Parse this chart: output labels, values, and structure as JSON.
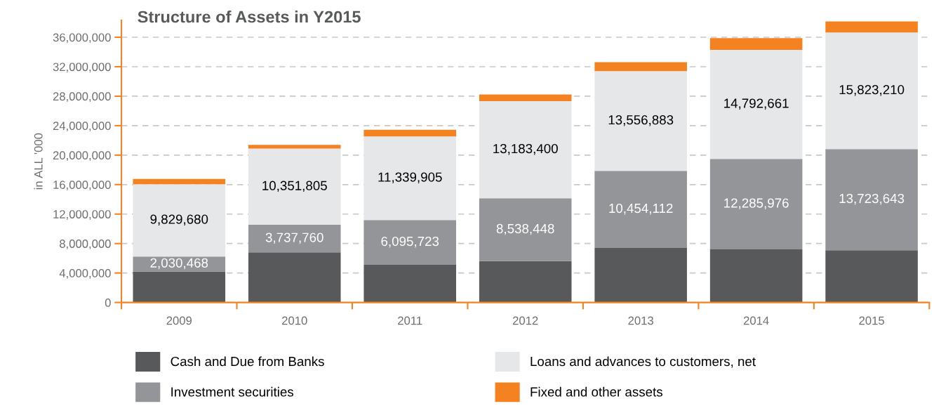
{
  "chart_data": {
    "type": "bar",
    "stacked": true,
    "title": "Structure of Assets in Y2015",
    "ylabel": "in ALL '000",
    "categories": [
      "2009",
      "2010",
      "2011",
      "2012",
      "2013",
      "2014",
      "2015"
    ],
    "series": [
      {
        "name": "Cash and Due from Banks",
        "color": "#58595b",
        "values": [
          4200000,
          6800000,
          5100000,
          5600000,
          7400000,
          7200000,
          7100000
        ]
      },
      {
        "name": "Investment securities",
        "color": "#939598",
        "values": [
          2030468,
          3737760,
          6095723,
          8538448,
          10454112,
          12285976,
          13723643
        ],
        "value_labels": [
          "2,030,468",
          "3,737,760",
          "6,095,723",
          "8,538,448",
          "10,454,112",
          "12,285,976",
          "13,723,643"
        ]
      },
      {
        "name": "Loans and advances to customers, net",
        "color": "#e6e7e8",
        "values": [
          9829680,
          10351805,
          11339905,
          13183400,
          13556883,
          14792661,
          15823210
        ],
        "value_labels": [
          "9,829,680",
          "10,351,805",
          "11,339,905",
          "13,183,400",
          "13,556,883",
          "14,792,661",
          "15,823,210"
        ]
      },
      {
        "name": "Fixed and other assets",
        "color": "#f58220",
        "values": [
          700000,
          500000,
          900000,
          900000,
          1200000,
          1600000,
          1500000
        ]
      }
    ],
    "ylim": [
      0,
      38300000
    ],
    "yticks": [
      {
        "value": 0,
        "label": "0"
      },
      {
        "value": 4000000,
        "label": "4,000,000"
      },
      {
        "value": 8000000,
        "label": "8,000,000"
      },
      {
        "value": 12000000,
        "label": "12,000,000"
      },
      {
        "value": 16000000,
        "label": "16,000,000"
      },
      {
        "value": 20000000,
        "label": "20,000,000"
      },
      {
        "value": 24000000,
        "label": "24,000,000"
      },
      {
        "value": 28000000,
        "label": "28,000,000"
      },
      {
        "value": 32000000,
        "label": "32,000,000"
      },
      {
        "value": 36000000,
        "label": "36,000,000"
      }
    ],
    "grid": "y",
    "legend": "bottom"
  }
}
